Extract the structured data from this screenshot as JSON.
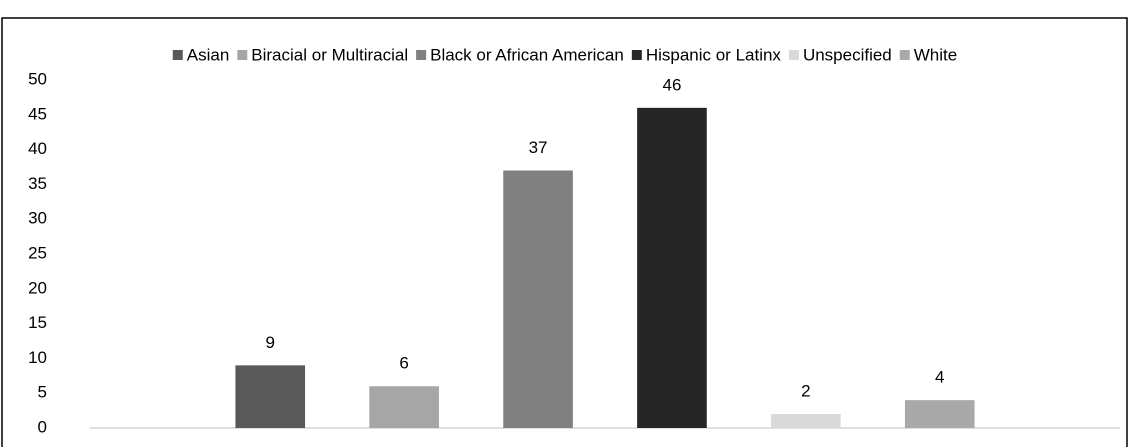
{
  "chart_data": {
    "type": "bar",
    "categories": [
      null
    ],
    "series": [
      {
        "name": "Asian",
        "color": "#595959",
        "values": [
          9
        ]
      },
      {
        "name": "Biracial or Multiracial",
        "color": "#a6a6a6",
        "values": [
          6
        ]
      },
      {
        "name": "Black or African American",
        "color": "#808080",
        "values": [
          37
        ]
      },
      {
        "name": "Hispanic or Latinx",
        "color": "#262626",
        "values": [
          46
        ]
      },
      {
        "name": "Unspecified",
        "color": "#d9d9d9",
        "values": [
          2
        ]
      },
      {
        "name": "White",
        "color": "#a9a9a9",
        "values": [
          4
        ]
      }
    ],
    "ylim": [
      0,
      50
    ],
    "yticks": [
      0,
      5,
      10,
      15,
      20,
      25,
      30,
      35,
      40,
      45,
      50
    ],
    "grid": false,
    "legend": "top",
    "data_labels": true
  }
}
